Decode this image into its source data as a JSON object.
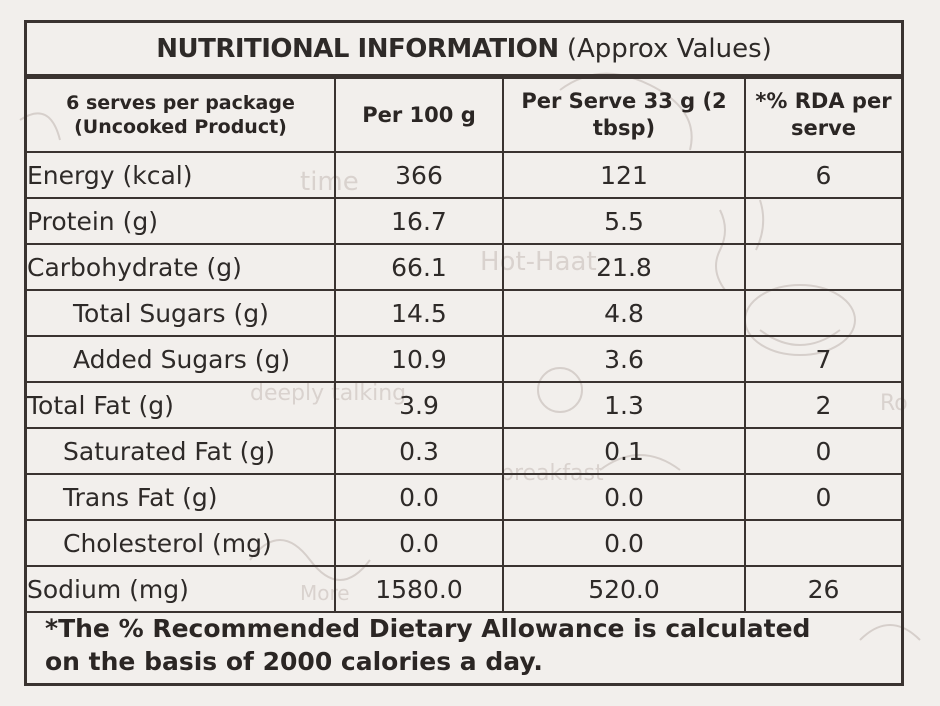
{
  "title": {
    "bold": "NUTRITIONAL INFORMATION",
    "light": "(Approx Values)"
  },
  "headers": {
    "col1": "6 serves per package (Uncooked Product)",
    "col2": "Per 100 g",
    "col3": "Per Serve 33 g (2 tbsp)",
    "col4": "*% RDA per serve"
  },
  "rows": [
    {
      "name": "Energy (kcal)",
      "per100": "366",
      "perServe": "121",
      "rda": "6"
    },
    {
      "name": "Protein (g)",
      "per100": "16.7",
      "perServe": "5.5",
      "rda": ""
    },
    {
      "name": "Carbohydrate (g)",
      "per100": "66.1",
      "perServe": "21.8",
      "rda": ""
    },
    {
      "name": "Total Sugars (g)",
      "per100": "14.5",
      "perServe": "4.8",
      "rda": ""
    },
    {
      "name": "Added Sugars (g)",
      "per100": "10.9",
      "perServe": "3.6",
      "rda": "7"
    },
    {
      "name": "Total Fat (g)",
      "per100": "3.9",
      "perServe": "1.3",
      "rda": "2"
    },
    {
      "name": "Saturated Fat (g)",
      "per100": "0.3",
      "perServe": "0.1",
      "rda": "0"
    },
    {
      "name": "Trans Fat (g)",
      "per100": "0.0",
      "perServe": "0.0",
      "rda": "0"
    },
    {
      "name": "Cholesterol (mg)",
      "per100": "0.0",
      "perServe": "0.0",
      "rda": ""
    },
    {
      "name": "Sodium (mg)",
      "per100": "1580.0",
      "perServe": "520.0",
      "rda": "26"
    }
  ],
  "footnote": {
    "line1": "*The % Recommended Dietary Allowance is calculated",
    "line2": "on the basis of 2000 calories a day."
  },
  "colors": {
    "background": "#f2efec",
    "border": "#3a3330",
    "text": "#2e2a28"
  }
}
